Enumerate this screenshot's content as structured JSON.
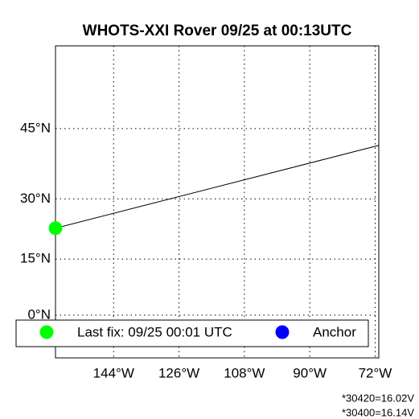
{
  "chart_data": {
    "type": "map",
    "title": "WHOTS-XXI Rover 09/25 at 00:13UTC",
    "projection": "mercator",
    "xlim": [
      -160,
      -71
    ],
    "ylim": [
      -11.5,
      58.7
    ],
    "xticks": [
      {
        "value": -144,
        "label": "144°W"
      },
      {
        "value": -126,
        "label": "126°W"
      },
      {
        "value": -108,
        "label": "108°W"
      },
      {
        "value": -90,
        "label": "90°W"
      },
      {
        "value": -72,
        "label": "72°W"
      }
    ],
    "yticks": [
      {
        "value": 0,
        "label": "0°N"
      },
      {
        "value": 15,
        "label": "15°N"
      },
      {
        "value": 30,
        "label": "30°N"
      },
      {
        "value": 45,
        "label": "45°N"
      }
    ],
    "grid": true,
    "track": {
      "color": "#000000",
      "x": [
        -160,
        -71
      ],
      "y": [
        22.9,
        41.7
      ]
    },
    "series": [
      {
        "name": "Last fix: 09/25 00:01 UTC",
        "color": "#00ff00",
        "x": [
          -160
        ],
        "y": [
          22.9
        ]
      },
      {
        "name": "Anchor",
        "color": "#0000ff",
        "x": [],
        "y": []
      }
    ],
    "legend": "bottom",
    "annotations": [
      "*30420=16.02V",
      "*30400=16.14V"
    ]
  }
}
